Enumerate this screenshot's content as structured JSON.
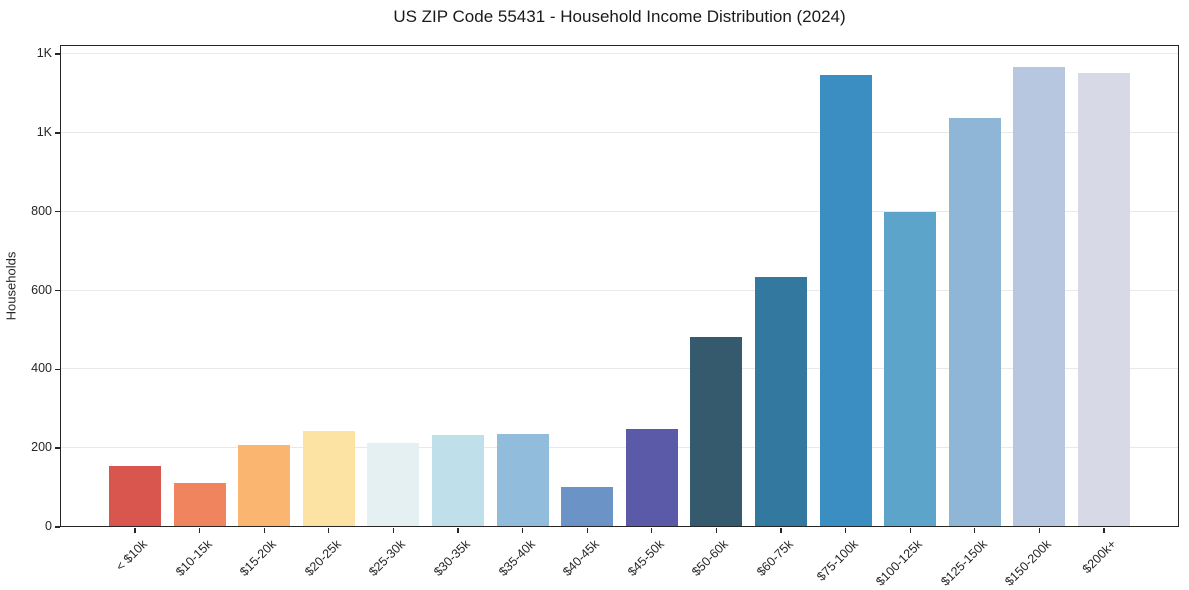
{
  "chart_data": {
    "type": "bar",
    "title": "US ZIP Code 55431 - Household Income Distribution (2024)",
    "xlabel": "",
    "ylabel": "Households",
    "categories": [
      "< $10k",
      "$10-15k",
      "$15-20k",
      "$20-25k",
      "$25-30k",
      "$30-35k",
      "$35-40k",
      "$40-45k",
      "$45-50k",
      "$50-60k",
      "$60-75k",
      "$75-100k",
      "$100-125k",
      "$125-150k",
      "$150-200k",
      "$200k+"
    ],
    "values": [
      155,
      112,
      207,
      243,
      214,
      234,
      236,
      102,
      249,
      483,
      635,
      1147,
      799,
      1037,
      1166,
      1151
    ],
    "bar_colors": [
      "#d9564f",
      "#f0845f",
      "#fab671",
      "#fce3a4",
      "#e4f0f2",
      "#bfdfea",
      "#92bcdb",
      "#6c93c5",
      "#5b5aa9",
      "#35596d",
      "#33789e",
      "#3a8ec2",
      "#5ca4c9",
      "#8fb5d7",
      "#b7c7e0",
      "#d7d9e6"
    ],
    "yticks": {
      "values": [
        0,
        200,
        400,
        600,
        800,
        1000,
        1200
      ],
      "labels": [
        "0",
        "200",
        "400",
        "600",
        "800",
        "1K",
        "1K"
      ]
    },
    "ylim": [
      0,
      1223
    ],
    "grid": "horizontal",
    "gridline_color": "#e9e9e9",
    "legend": "none",
    "x_tick_rotation": -45,
    "text_color": "#262626"
  }
}
